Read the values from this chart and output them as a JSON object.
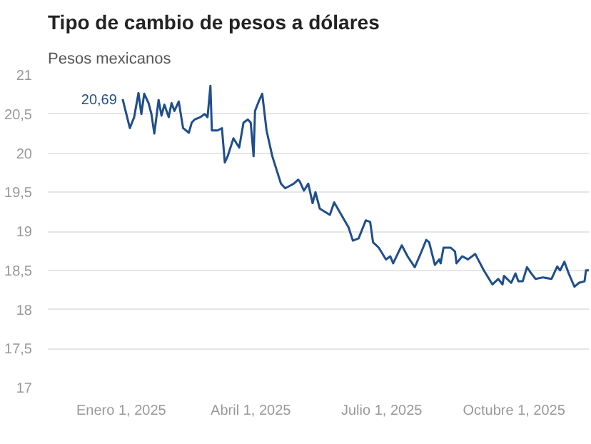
{
  "chart_data": {
    "type": "line",
    "title": "Tipo de cambio de pesos a dólares",
    "subtitle": "Pesos mexicanos",
    "x": [
      "2025-01-02",
      "2025-01-07",
      "2025-01-10",
      "2025-01-13",
      "2025-01-15",
      "2025-01-17",
      "2025-01-20",
      "2025-01-22",
      "2025-01-24",
      "2025-01-27",
      "2025-01-29",
      "2025-01-31",
      "2025-02-03",
      "2025-02-05",
      "2025-02-07",
      "2025-02-10",
      "2025-02-13",
      "2025-02-17",
      "2025-02-19",
      "2025-02-21",
      "2025-02-25",
      "2025-02-28",
      "2025-03-02",
      "2025-03-04",
      "2025-03-05",
      "2025-03-09",
      "2025-03-12",
      "2025-03-14",
      "2025-03-16",
      "2025-03-20",
      "2025-03-24",
      "2025-03-27",
      "2025-03-30",
      "2025-04-01",
      "2025-04-03",
      "2025-04-04",
      "2025-04-07",
      "2025-04-09",
      "2025-04-12",
      "2025-04-16",
      "2025-04-22",
      "2025-04-25",
      "2025-05-01",
      "2025-05-04",
      "2025-05-05",
      "2025-05-08",
      "2025-05-11",
      "2025-05-14",
      "2025-05-16",
      "2025-05-19",
      "2025-05-26",
      "2025-05-29",
      "2025-06-03",
      "2025-06-08",
      "2025-06-11",
      "2025-06-15",
      "2025-06-20",
      "2025-06-23",
      "2025-06-25",
      "2025-06-29",
      "2025-07-04",
      "2025-07-07",
      "2025-07-09",
      "2025-07-15",
      "2025-07-19",
      "2025-07-24",
      "2025-07-28",
      "2025-08-01",
      "2025-08-03",
      "2025-08-07",
      "2025-08-10",
      "2025-08-11",
      "2025-08-13",
      "2025-08-18",
      "2025-08-21",
      "2025-08-22",
      "2025-08-26",
      "2025-08-30",
      "2025-09-04",
      "2025-09-06",
      "2025-09-10",
      "2025-09-16",
      "2025-09-20",
      "2025-09-23",
      "2025-09-24",
      "2025-09-29",
      "2025-10-02",
      "2025-10-04",
      "2025-10-07",
      "2025-10-10",
      "2025-10-13",
      "2025-10-16",
      "2025-10-21",
      "2025-10-27",
      "2025-10-31",
      "2025-11-02",
      "2025-11-05",
      "2025-11-08",
      "2025-11-12",
      "2025-11-15",
      "2025-11-19",
      "2025-11-20",
      "2025-11-22"
    ],
    "series": [
      {
        "color": "#1f4e8c",
        "values": [
          20.69,
          20.32,
          20.46,
          20.77,
          20.5,
          20.76,
          20.64,
          20.5,
          20.25,
          20.68,
          20.48,
          20.62,
          20.46,
          20.64,
          20.54,
          20.66,
          20.32,
          20.26,
          20.39,
          20.43,
          20.46,
          20.5,
          20.46,
          20.86,
          20.29,
          20.29,
          20.32,
          19.88,
          19.96,
          20.19,
          20.07,
          20.39,
          20.43,
          20.39,
          19.96,
          20.54,
          20.68,
          20.76,
          20.29,
          19.96,
          19.61,
          19.55,
          19.61,
          19.66,
          19.64,
          19.52,
          19.61,
          19.36,
          19.5,
          19.29,
          19.21,
          19.37,
          19.21,
          19.05,
          18.88,
          18.91,
          19.14,
          19.12,
          18.86,
          18.79,
          18.64,
          18.68,
          18.59,
          18.82,
          18.68,
          18.54,
          18.71,
          18.89,
          18.86,
          18.57,
          18.64,
          18.59,
          18.79,
          18.79,
          18.74,
          18.59,
          18.68,
          18.64,
          18.71,
          18.64,
          18.5,
          18.32,
          18.39,
          18.32,
          18.43,
          18.34,
          18.46,
          18.36,
          18.36,
          18.54,
          18.46,
          18.39,
          18.41,
          18.39,
          18.55,
          18.5,
          18.61,
          18.46,
          18.29,
          18.34,
          18.36,
          18.5,
          18.5
        ]
      }
    ],
    "xlim": [
      "2024-11-11",
      "2025-11-22"
    ],
    "xticks": [
      {
        "value": "2025-01-01",
        "label": "Enero 1, 2025"
      },
      {
        "value": "2025-04-01",
        "label": "Abril 1, 2025"
      },
      {
        "value": "2025-07-01",
        "label": "Julio 1, 2025"
      },
      {
        "value": "2025-10-01",
        "label": "Octubre 1, 2025"
      }
    ],
    "ylim": [
      17,
      21
    ],
    "yticks": [
      17,
      {
        "value": 17.5,
        "label": "17,5"
      },
      18,
      {
        "value": 18.5,
        "label": "18,5"
      },
      19,
      {
        "value": 19.5,
        "label": "19,5"
      },
      20,
      {
        "value": 20.5,
        "label": "20,5"
      },
      21
    ],
    "grid": "y",
    "line_style": "solid",
    "marker": "none",
    "annotations": [
      {
        "text": "20,69",
        "x": "2025-01-02",
        "y": 20.69
      }
    ]
  }
}
